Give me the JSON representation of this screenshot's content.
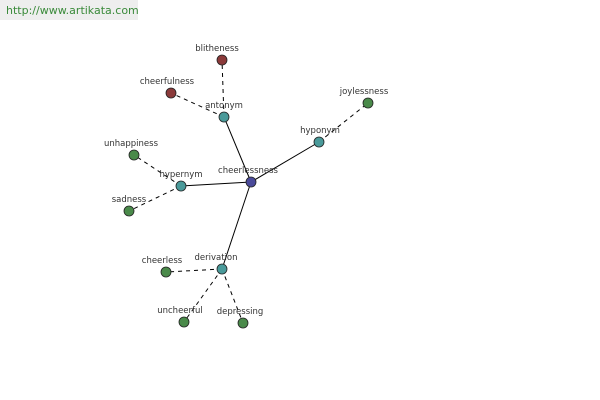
{
  "header": {
    "url": "http://www.artikata.com"
  },
  "nodes": [
    {
      "label": "cheerlessness"
    },
    {
      "label": "antonym"
    },
    {
      "label": "blitheness"
    },
    {
      "label": "cheerfulness"
    },
    {
      "label": "hyponym"
    },
    {
      "label": "joylessness"
    },
    {
      "label": "hypernym"
    },
    {
      "label": "unhappiness"
    },
    {
      "label": "sadness"
    },
    {
      "label": "derivation"
    },
    {
      "label": "cheerless"
    },
    {
      "label": "uncheerful"
    },
    {
      "label": "depressing"
    }
  ]
}
